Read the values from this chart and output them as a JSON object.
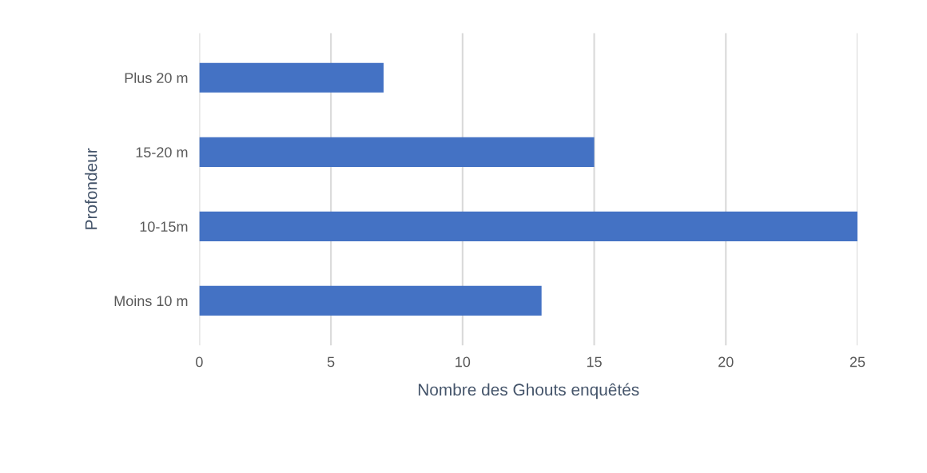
{
  "chart_data": {
    "type": "bar",
    "orientation": "horizontal",
    "categories": [
      "Plus 20 m",
      "15-20 m",
      "10-15m",
      "Moins 10 m"
    ],
    "values": [
      7,
      15,
      25,
      13
    ],
    "color": "#4472c4",
    "xlabel": "Nombre des Ghouts enquêtés",
    "ylabel": "Profondeur",
    "xlim": [
      0,
      25
    ],
    "xticks": [
      0,
      5,
      10,
      15,
      20,
      25
    ],
    "grid": "x"
  }
}
